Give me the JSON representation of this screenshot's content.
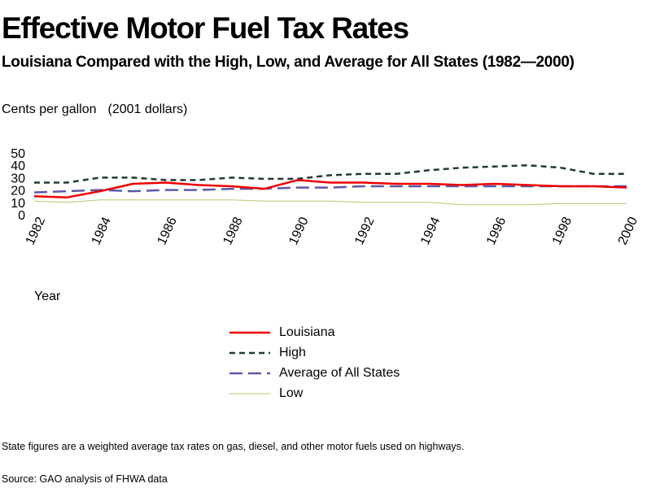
{
  "chart_data": {
    "type": "line",
    "title": "Effective Motor Fuel Tax Rates",
    "subtitle": "Louisiana Compared with the High, Low, and Average for All States (1982—2000)",
    "y_units": "Cents per gallon",
    "y_units_note": "(2001 dollars)",
    "xlabel": "Year",
    "ylabel": "",
    "ylim": [
      0,
      50
    ],
    "yticks": [
      0,
      10,
      20,
      30,
      40,
      50
    ],
    "x": [
      1982,
      1983,
      1984,
      1985,
      1986,
      1987,
      1988,
      1989,
      1990,
      1991,
      1992,
      1993,
      1994,
      1995,
      1996,
      1997,
      1998,
      1999,
      2000
    ],
    "xticks": [
      "1982",
      "1984",
      "1986",
      "1988",
      "1990",
      "1992",
      "1994",
      "1996",
      "1998",
      "2000"
    ],
    "grid": false,
    "legend_position": "bottom-center",
    "series": [
      {
        "name": "Louisiana",
        "style": "solid",
        "color": "#ee0000",
        "width": 2.5,
        "values": [
          15,
          14,
          19,
          25,
          26,
          24,
          23,
          21,
          28,
          26,
          26,
          25,
          25,
          24,
          25,
          24,
          23,
          23,
          22
        ]
      },
      {
        "name": "High",
        "style": "dotted",
        "color": "#1f3d2e",
        "width": 2.5,
        "values": [
          26,
          26,
          30,
          30,
          28,
          28,
          30,
          29,
          29,
          32,
          33,
          33,
          36,
          38,
          39,
          40,
          38,
          33,
          33
        ]
      },
      {
        "name": "Average of All States",
        "style": "dashed",
        "color": "#5a5aa8",
        "width": 2.5,
        "values": [
          18,
          19,
          20,
          19,
          20,
          20,
          21,
          21,
          22,
          22,
          23,
          23,
          23,
          23,
          23,
          23,
          23,
          23,
          23
        ]
      },
      {
        "name": "Low",
        "style": "solid",
        "color": "#b5c872",
        "width": 1,
        "values": [
          11,
          10,
          12,
          12,
          12,
          12,
          12,
          11,
          11,
          11,
          10,
          10,
          10,
          8,
          8,
          8,
          9,
          9,
          9
        ]
      }
    ]
  },
  "footnote": "State figures are a weighted average tax rates on gas, diesel, and other motor fuels used on highways.",
  "source": "Source: GAO analysis of FHWA data"
}
